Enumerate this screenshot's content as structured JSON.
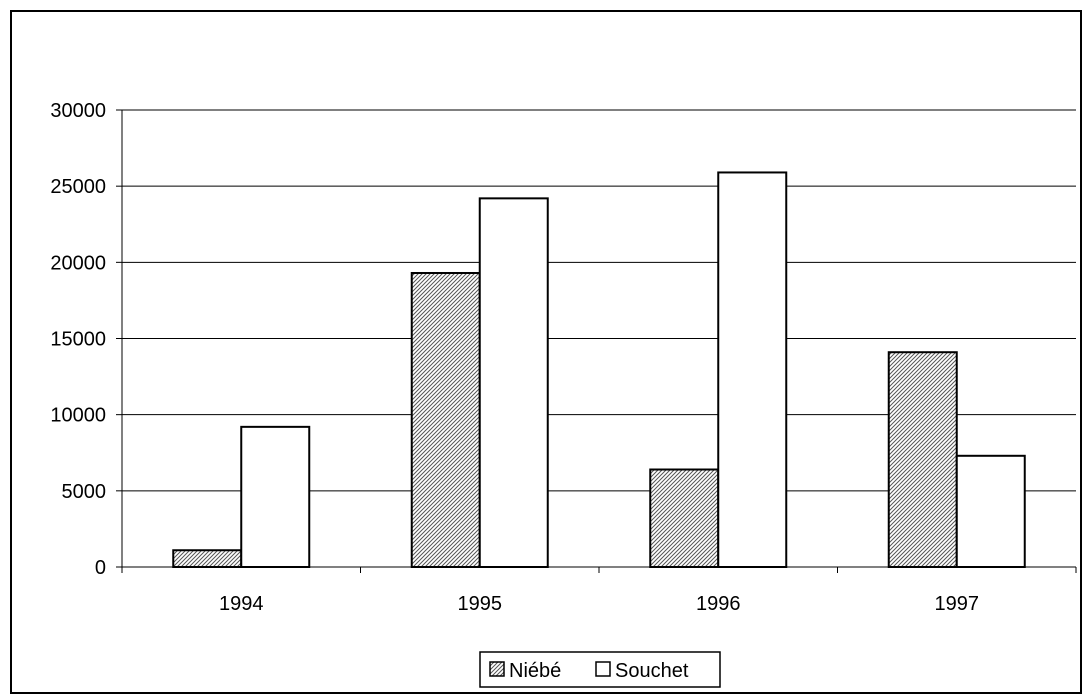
{
  "chart_data": {
    "type": "bar",
    "title": "",
    "xlabel": "",
    "ylabel": "",
    "categories": [
      "1994",
      "1995",
      "1996",
      "1997"
    ],
    "series": [
      {
        "name": "Niébé",
        "values": [
          1100,
          19300,
          6400,
          14100
        ],
        "pattern": "hatched"
      },
      {
        "name": "Souchet",
        "values": [
          9200,
          24200,
          25900,
          7300
        ],
        "pattern": "white"
      }
    ],
    "ylim": [
      0,
      30000
    ],
    "yticks": [
      0,
      5000,
      10000,
      15000,
      20000,
      25000,
      30000
    ],
    "grid": true,
    "legend_position": "bottom-center",
    "colors": {
      "bar_stroke": "#000000",
      "hatch": "#555555",
      "white_fill": "#ffffff",
      "grid": "#000000"
    }
  }
}
